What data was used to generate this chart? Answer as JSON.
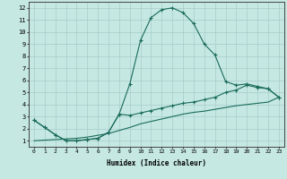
{
  "xlabel": "Humidex (Indice chaleur)",
  "xlim": [
    -0.5,
    23.5
  ],
  "ylim": [
    0.5,
    12.5
  ],
  "xticks": [
    0,
    1,
    2,
    3,
    4,
    5,
    6,
    7,
    8,
    9,
    10,
    11,
    12,
    13,
    14,
    15,
    16,
    17,
    18,
    19,
    20,
    21,
    22,
    23
  ],
  "yticks": [
    1,
    2,
    3,
    4,
    5,
    6,
    7,
    8,
    9,
    10,
    11,
    12
  ],
  "bg_color": "#c5e8e3",
  "grid_color": "#a8ccca",
  "line_color": "#1a6b5a",
  "curve1_x": [
    0,
    1,
    2,
    3,
    4,
    5,
    6,
    7,
    8,
    9,
    10,
    11,
    12,
    13,
    14,
    15,
    16,
    17,
    18,
    19,
    20,
    21,
    22,
    23
  ],
  "curve1_y": [
    2.7,
    2.1,
    1.5,
    1.0,
    1.0,
    1.1,
    1.2,
    1.7,
    3.2,
    5.7,
    9.3,
    11.2,
    11.85,
    12.0,
    11.6,
    10.7,
    9.0,
    8.1,
    5.9,
    5.6,
    5.7,
    5.5,
    5.3,
    4.6
  ],
  "curve2_x": [
    0,
    1,
    2,
    3,
    4,
    5,
    6,
    7,
    8,
    9,
    10,
    11,
    12,
    13,
    14,
    15,
    16,
    17,
    18,
    19,
    20,
    21,
    22,
    23
  ],
  "curve2_y": [
    2.7,
    2.1,
    1.5,
    1.0,
    1.0,
    1.1,
    1.2,
    1.7,
    3.2,
    3.1,
    3.3,
    3.5,
    3.7,
    3.9,
    4.1,
    4.2,
    4.4,
    4.6,
    5.0,
    5.2,
    5.6,
    5.4,
    5.3,
    4.6
  ],
  "curve3_x": [
    0,
    1,
    2,
    3,
    4,
    5,
    6,
    7,
    8,
    9,
    10,
    11,
    12,
    13,
    14,
    15,
    16,
    17,
    18,
    19,
    20,
    21,
    22,
    23
  ],
  "curve3_y": [
    1.0,
    1.05,
    1.1,
    1.15,
    1.2,
    1.3,
    1.45,
    1.6,
    1.85,
    2.1,
    2.4,
    2.6,
    2.8,
    3.0,
    3.2,
    3.35,
    3.45,
    3.6,
    3.75,
    3.9,
    4.0,
    4.1,
    4.2,
    4.6
  ]
}
